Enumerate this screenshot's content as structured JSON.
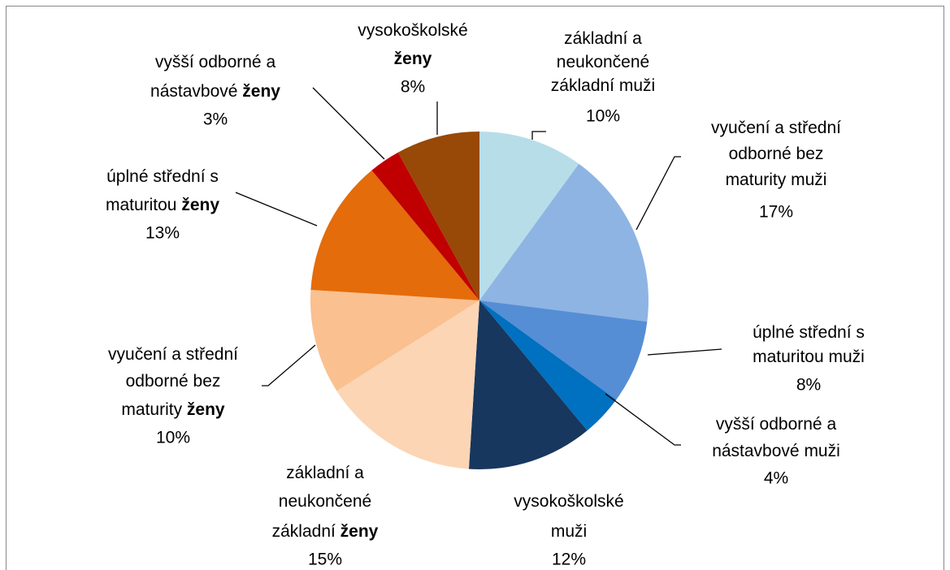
{
  "chart_data": {
    "type": "pie",
    "categories": [
      "základní a neukončené základní muži",
      "vyučení a střední odborné bez maturity muži",
      "úplné střední s maturitou muži",
      "vyšší odborné a nástavbové muži",
      "vysokoškolské muži",
      "základní a neukončené základní ženy",
      "vyučení a střední odborné bez maturity ženy",
      "úplné střední s maturitou ženy",
      "vyšší odborné a nástavbové ženy",
      "vysokoškolské ženy"
    ],
    "values": [
      10,
      17,
      8,
      4,
      12,
      15,
      10,
      13,
      3,
      8
    ],
    "value_labels": [
      "10%",
      "17%",
      "8%",
      "4%",
      "12%",
      "15%",
      "10%",
      "13%",
      "3%",
      "8%"
    ],
    "colors": [
      "#b7dde8",
      "#8eb4e3",
      "#558ed5",
      "#0070c0",
      "#17375e",
      "#fcd5b5",
      "#fac090",
      "#e46c0a",
      "#c00000",
      "#984807"
    ],
    "bold_last_word": [
      false,
      false,
      false,
      false,
      false,
      true,
      true,
      true,
      true,
      true
    ]
  }
}
